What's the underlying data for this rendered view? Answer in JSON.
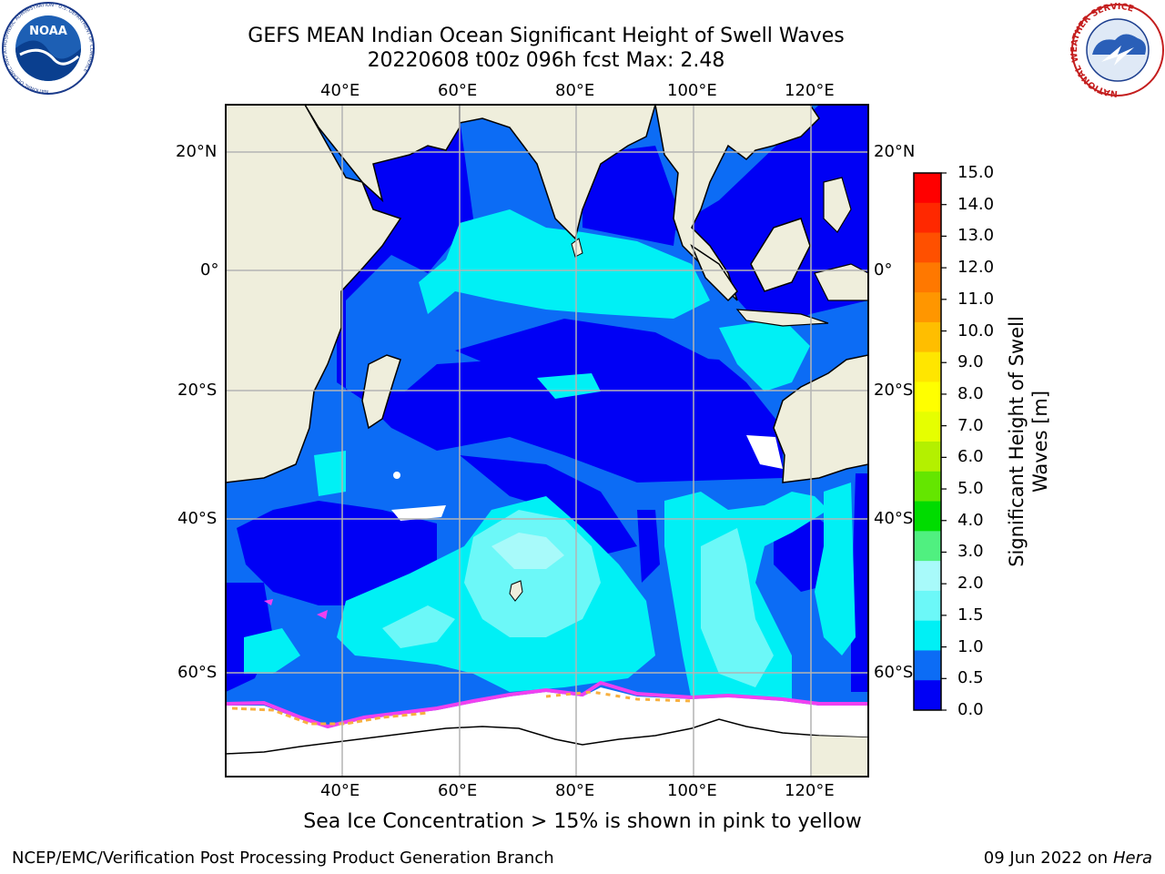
{
  "header": {
    "title_line1": "GEFS MEAN Indian Ocean Significant Height of Swell Waves",
    "title_line2": "20220608 t00z 096h fcst   Max: 2.48"
  },
  "logos": {
    "noaa_text": "NOAA",
    "noaa_ring": "NATIONAL OCEANIC AND ATMOSPHERIC ADMINISTRATION · U.S. DEPARTMENT OF COMMERCE",
    "nws_ring": "NATIONAL WEATHER SERVICE"
  },
  "map": {
    "lon_labels": [
      "40°E",
      "60°E",
      "80°E",
      "100°E",
      "120°E"
    ],
    "lat_labels": [
      "20°N",
      "0°",
      "20°S",
      "40°S",
      "60°S"
    ],
    "colors": {
      "land": "#efeedc",
      "ocean_deep": "#0000f5",
      "ocean_mid": "#0c6cf5",
      "ocean_cyan": "#00f0f5",
      "ocean_light": "#6cf5f5",
      "ocean_pale": "#a8f8f8",
      "ice": "#ffffff",
      "ice_edge_pink": "#f040f0",
      "ice_edge_orange": "#f8b040"
    }
  },
  "colorbar": {
    "title_line1": "Significant Height of Swell",
    "title_line2": "Waves [m]",
    "tick_labels": [
      "15.0",
      "14.0",
      "13.0",
      "12.0",
      "11.0",
      "10.0",
      "9.0",
      "8.0",
      "7.0",
      "6.0",
      "5.0",
      "4.0",
      "3.0",
      "2.0",
      "1.5",
      "1.0",
      "0.5",
      "0.0"
    ],
    "colors": [
      "#ff0000",
      "#ff2800",
      "#ff5000",
      "#ff7800",
      "#ff9600",
      "#ffbe00",
      "#ffe600",
      "#ffff00",
      "#e6ff00",
      "#b4f000",
      "#64e600",
      "#00dc00",
      "#50f080",
      "#a8fafa",
      "#6cf8f8",
      "#00f0f5",
      "#0c6cf5",
      "#0000f5"
    ]
  },
  "footer": {
    "note": "Sea Ice Concentration > 15% is shown in pink to yellow",
    "credit": "NCEP/EMC/Verification Post Processing Product Generation Branch",
    "date": "09 Jun 2022 on",
    "host": "Hera"
  }
}
